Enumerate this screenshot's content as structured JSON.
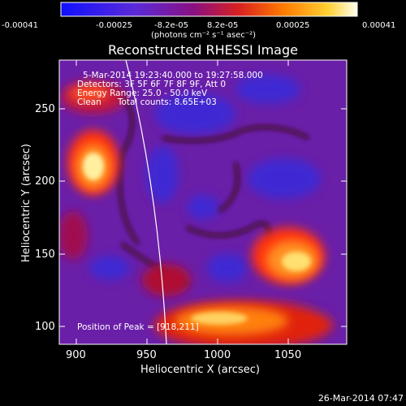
{
  "colorbar": {
    "ticks": [
      "-0.00041",
      "-0.00025",
      "-8.2e-05",
      "8.2e-05",
      "0.00025",
      "0.00041"
    ],
    "units_label": "(photons cm⁻² s⁻¹ asec⁻²)"
  },
  "plot": {
    "title": "Reconstructed RHESSI Image",
    "info_lines": [
      "5-Mar-2014 19:23:40.000 to 19:27:58.000",
      "Detectors: 3F 5F 6F 7F 8F 9F, Att 0",
      "Energy Range: 25.0 - 50.0 keV",
      "Clean      Total counts: 8.65E+03"
    ],
    "peak_label": "Position of Peak = [918,211]",
    "x_axis": {
      "label": "Heliocentric X (arcsec)",
      "ticks": [
        "900",
        "950",
        "1000",
        "1050"
      ],
      "range": [
        890,
        1085
      ]
    },
    "y_axis": {
      "label": "Heliocentric Y (arcsec)",
      "ticks": [
        "100",
        "150",
        "200",
        "250"
      ],
      "range": [
        90,
        285
      ]
    }
  },
  "footer": {
    "timestamp": "26-Mar-2014 07:47"
  },
  "colors": {
    "background": "#000000",
    "limb": "#ffffff",
    "text": "#ffffff"
  }
}
